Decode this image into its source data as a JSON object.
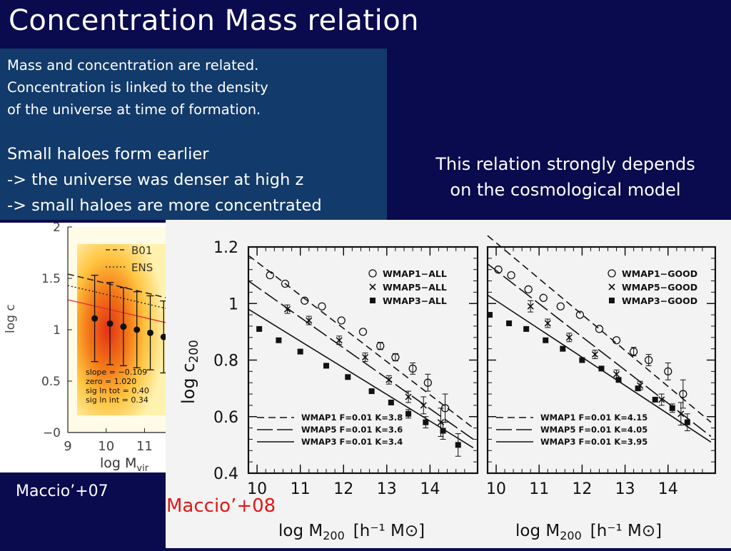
{
  "slide": {
    "title": "Concentration Mass relation",
    "intro_lines": [
      "Mass and concentration are related.",
      "Concentration is linked to the density",
      "of the universe at time of formation."
    ],
    "small_haloes_lines": [
      "Small haloes form earlier",
      "-> the universe was denser at high z",
      "-> small haloes are more concentrated"
    ],
    "note_lines": [
      "This relation strongly depends",
      "on the cosmological model"
    ],
    "caption_left": "Maccio’+07",
    "caption_right": "Maccio’+08"
  },
  "colors": {
    "background": "#0a0a4e",
    "textbox": "#123a6a",
    "caption_right": "#e01818"
  },
  "chart_data": [
    {
      "type": "scatter",
      "title": "",
      "xlabel": "log M",
      "xlabel_sub": "vir",
      "ylabel": "log c",
      "xticks": [
        "9",
        "10",
        "11"
      ],
      "yticks": [
        "2",
        "1.5",
        "1",
        "0.5",
        "−0"
      ],
      "xlim": [
        9,
        11.55
      ],
      "ylim": [
        0,
        2
      ],
      "legend": [
        "B01",
        "ENS"
      ],
      "fit_text": [
        "slope = −0.109",
        "zero  = 1.020",
        "sig ln tot = 0.40",
        "sig ln int = 0.34"
      ],
      "series": [
        {
          "x": [
            9.7,
            10.1,
            10.45,
            10.8,
            11.15,
            11.5
          ],
          "values": [
            1.11,
            1.06,
            1.03,
            1.0,
            0.97,
            0.93
          ],
          "err": [
            0.42,
            0.4,
            0.38,
            0.37,
            0.36,
            0.35
          ]
        }
      ]
    },
    {
      "type": "scatter",
      "title": "",
      "xlabel": "log M",
      "xlabel_sub": "200",
      "xlabel_unit": "[h⁻¹ M⊙]",
      "ylabel": "log c",
      "ylabel_sub": "200",
      "xticks": [
        "10",
        "11",
        "12",
        "13",
        "14"
      ],
      "yticks": [
        "1.2",
        "1",
        "0.8",
        "0.6",
        "0.4"
      ],
      "xlim": [
        9.8,
        15.1
      ],
      "ylim": [
        0.4,
        1.2
      ],
      "legend": [
        "WMAP1−ALL",
        "WMAP5−ALL",
        "WMAP3−ALL"
      ],
      "fit_legend": [
        "WMAP1 F=0.01 K=3.8",
        "WMAP5 F=0.01 K=3.6",
        "WMAP3 F=0.01 K=3.4"
      ],
      "series": [
        {
          "name": "WMAP1−ALL",
          "x": [
            10.3,
            10.65,
            11.1,
            11.5,
            11.95,
            12.45,
            12.85,
            13.2,
            13.6,
            13.95,
            14.35
          ],
          "values": [
            1.1,
            1.07,
            1.01,
            0.99,
            0.94,
            0.9,
            0.85,
            0.81,
            0.77,
            0.72,
            0.63
          ],
          "err": [
            0.012,
            0.012,
            0.012,
            0.012,
            0.012,
            0.012,
            0.013,
            0.013,
            0.02,
            0.03,
            0.05
          ]
        },
        {
          "name": "WMAP5−ALL",
          "x": [
            10.7,
            11.2,
            11.9,
            12.5,
            13.05,
            13.5,
            13.85,
            14.25
          ],
          "values": [
            0.98,
            0.94,
            0.87,
            0.81,
            0.73,
            0.67,
            0.64,
            0.58
          ],
          "err": [
            0.015,
            0.015,
            0.015,
            0.015,
            0.015,
            0.02,
            0.03,
            0.05
          ]
        },
        {
          "name": "WMAP3−ALL",
          "x": [
            10.05,
            10.5,
            11.0,
            11.6,
            12.1,
            12.65,
            13.1,
            13.5,
            13.9,
            14.3,
            14.65
          ],
          "values": [
            0.91,
            0.87,
            0.83,
            0.78,
            0.74,
            0.69,
            0.65,
            0.61,
            0.58,
            0.55,
            0.5
          ],
          "err": [
            0.01,
            0.01,
            0.01,
            0.01,
            0.01,
            0.01,
            0.01,
            0.015,
            0.02,
            0.03,
            0.04
          ]
        }
      ],
      "fit_lines": [
        {
          "name": "WMAP1",
          "dash": "10,6",
          "x": [
            9.8,
            15.0
          ],
          "values": [
            1.17,
            0.56
          ]
        },
        {
          "name": "WMAP5",
          "dash": "22,6",
          "x": [
            9.8,
            15.0
          ],
          "values": [
            1.08,
            0.52
          ]
        },
        {
          "name": "WMAP3",
          "dash": "",
          "x": [
            9.8,
            15.0
          ],
          "values": [
            0.98,
            0.49
          ]
        }
      ]
    },
    {
      "type": "scatter",
      "title": "",
      "xlabel": "log M",
      "xlabel_sub": "200",
      "xlabel_unit": "[h⁻¹ M⊙]",
      "xticks": [
        "10",
        "11",
        "12",
        "13",
        "14"
      ],
      "xlim": [
        9.8,
        15.1
      ],
      "ylim": [
        0.4,
        1.2
      ],
      "legend": [
        "WMAP1−GOOD",
        "WMAP5−GOOD",
        "WMAP3−GOOD"
      ],
      "fit_legend": [
        "WMAP1 F=0.01 K=4.15",
        "WMAP5 F=0.01 K=4.05",
        "WMAP3 F=0.01 K=3.95"
      ],
      "series": [
        {
          "name": "WMAP1−GOOD",
          "x": [
            10.05,
            10.35,
            10.75,
            11.1,
            11.5,
            11.95,
            12.4,
            12.8,
            13.2,
            13.55,
            14.0,
            14.35
          ],
          "values": [
            1.12,
            1.1,
            1.05,
            1.02,
            0.99,
            0.96,
            0.91,
            0.87,
            0.83,
            0.8,
            0.76,
            0.68
          ],
          "err": [
            0.01,
            0.01,
            0.01,
            0.01,
            0.01,
            0.01,
            0.01,
            0.012,
            0.015,
            0.02,
            0.03,
            0.05
          ]
        },
        {
          "name": "WMAP5−GOOD",
          "x": [
            10.8,
            11.2,
            11.7,
            12.3,
            12.8,
            13.35,
            13.85,
            14.3
          ],
          "values": [
            0.99,
            0.93,
            0.88,
            0.82,
            0.75,
            0.71,
            0.66,
            0.61
          ],
          "err": [
            0.02,
            0.015,
            0.015,
            0.015,
            0.015,
            0.015,
            0.02,
            0.04
          ]
        },
        {
          "name": "WMAP3−GOOD",
          "x": [
            9.85,
            10.3,
            10.7,
            11.15,
            11.55,
            12.0,
            12.45,
            12.85,
            13.3,
            13.7,
            14.1,
            14.45
          ],
          "values": [
            0.96,
            0.93,
            0.91,
            0.87,
            0.84,
            0.8,
            0.77,
            0.73,
            0.7,
            0.66,
            0.63,
            0.58
          ],
          "err": [
            0.008,
            0.008,
            0.008,
            0.008,
            0.008,
            0.008,
            0.008,
            0.01,
            0.01,
            0.012,
            0.015,
            0.03
          ]
        }
      ],
      "fit_lines": [
        {
          "name": "WMAP1",
          "dash": "10,6",
          "x": [
            9.8,
            15.0
          ],
          "values": [
            1.24,
            0.58
          ]
        },
        {
          "name": "WMAP5",
          "dash": "22,6",
          "x": [
            9.8,
            15.0
          ],
          "values": [
            1.14,
            0.53
          ]
        },
        {
          "name": "WMAP3",
          "dash": "",
          "x": [
            9.8,
            15.0
          ],
          "values": [
            1.03,
            0.51
          ]
        }
      ]
    }
  ]
}
